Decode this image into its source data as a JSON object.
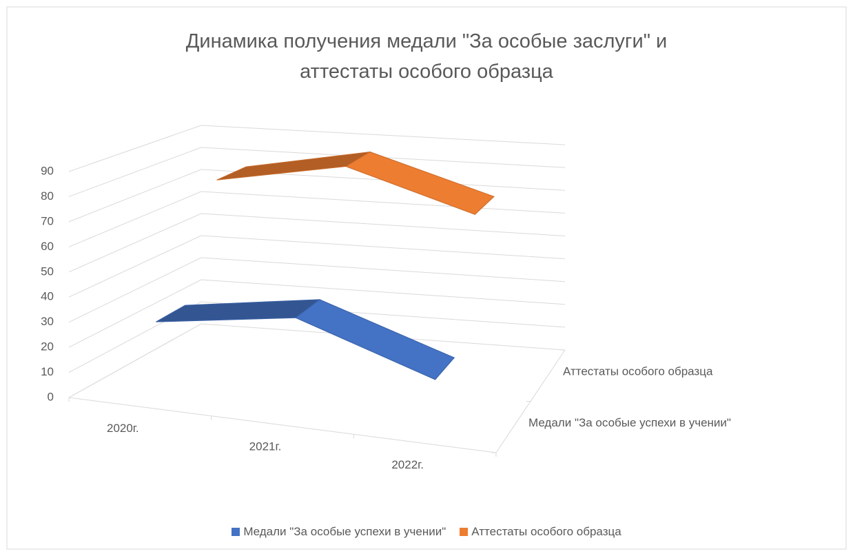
{
  "chart_data": {
    "type": "line3d",
    "title": "Динамика получения медали \"За особые заслуги\" и аттестаты особого образца",
    "categories": [
      "2020г.",
      "2021г.",
      "2022г."
    ],
    "series": [
      {
        "name": "Медали \"За особые успехи в учении\"",
        "color": "#4472c4",
        "values": [
          30,
          38,
          20
        ]
      },
      {
        "name": "Аттестаты особого образца",
        "color": "#ed7d31",
        "values": [
          76,
          86,
          70
        ]
      }
    ],
    "ylim": [
      0,
      90
    ],
    "yticks": [
      0,
      10,
      20,
      30,
      40,
      50,
      60,
      70,
      80,
      90
    ],
    "grid": true,
    "legend": "bottom"
  }
}
